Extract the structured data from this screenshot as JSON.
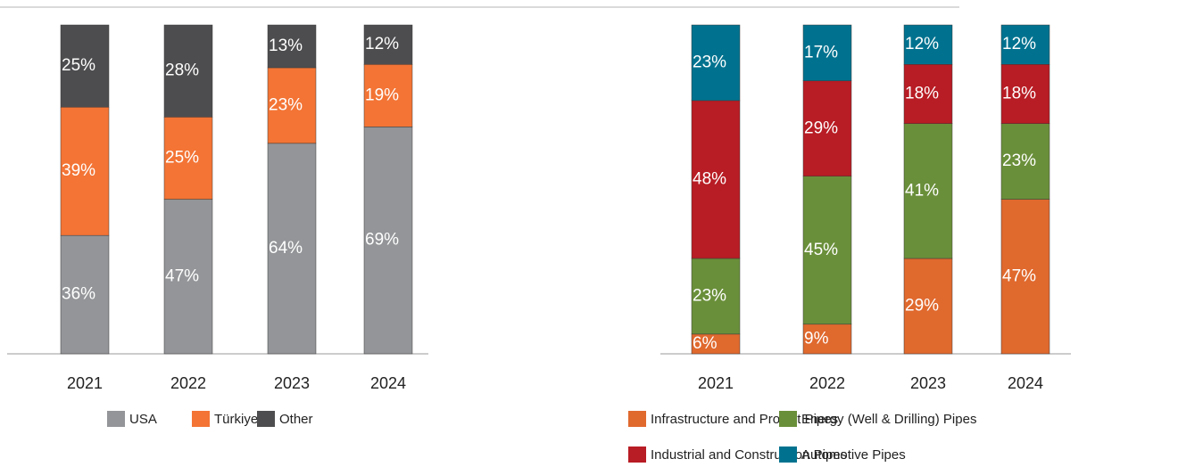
{
  "chart_data": [
    {
      "type": "bar",
      "stacked": true,
      "categories": [
        "2021",
        "2022",
        "2023",
        "2024"
      ],
      "series": [
        {
          "name": "USA",
          "color": "#939598",
          "values": [
            36,
            47,
            64,
            69
          ],
          "value_labels": [
            "36%",
            "47%",
            "64%",
            "69%"
          ]
        },
        {
          "name": "Türkiye",
          "color": "#f37435",
          "values": [
            39,
            25,
            23,
            19
          ],
          "value_labels": [
            "39%",
            "25%",
            "23%",
            "19%"
          ]
        },
        {
          "name": "Other",
          "color": "#4d4d4f",
          "values": [
            25,
            28,
            13,
            12
          ],
          "value_labels": [
            "25%",
            "28%",
            "13%",
            "12%"
          ]
        }
      ]
    },
    {
      "type": "bar",
      "stacked": true,
      "categories": [
        "2021",
        "2022",
        "2023",
        "2024"
      ],
      "series": [
        {
          "name": "Infrastructure and Project Pipes",
          "color": "#e0692e",
          "values": [
            6,
            9,
            29,
            47
          ],
          "value_labels": [
            "6%",
            "9%",
            "29%",
            "47%"
          ]
        },
        {
          "name": "Energy (Well & Drilling) Pipes",
          "color": "#6a8f3a",
          "values": [
            23,
            45,
            41,
            23
          ],
          "value_labels": [
            "23%",
            "45%",
            "41%",
            "23%"
          ]
        },
        {
          "name": "Industrial and Construction Pipes",
          "color": "#b81c24",
          "values": [
            48,
            29,
            18,
            18
          ],
          "value_labels": [
            "48%",
            "29%",
            "18%",
            "18%"
          ]
        },
        {
          "name": "Automotive Pipes",
          "color": "#00728f",
          "values": [
            23,
            17,
            12,
            12
          ],
          "value_labels": [
            "23%",
            "17%",
            "12%",
            "12%"
          ]
        }
      ]
    }
  ]
}
